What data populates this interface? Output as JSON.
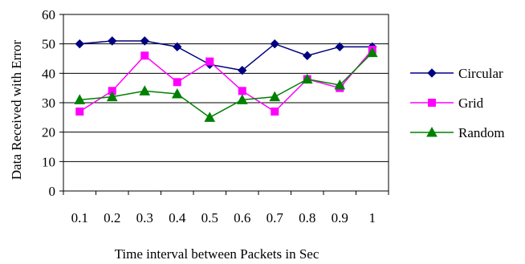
{
  "chart_data": {
    "type": "line",
    "xlabel": "Time interval between Packets in Sec",
    "ylabel": "Data Received with Error",
    "categories": [
      "0.1",
      "0.2",
      "0.3",
      "0.4",
      "0.5",
      "0.6",
      "0.7",
      "0.8",
      "0.9",
      "1"
    ],
    "ylim": [
      0,
      60
    ],
    "yticks": [
      "0",
      "10",
      "20",
      "30",
      "40",
      "50",
      "60"
    ],
    "grid": "horizontal",
    "legend_position": "right",
    "series": [
      {
        "name": "Circular",
        "color": "#000080",
        "marker": "diamond",
        "values": [
          50,
          51,
          51,
          49,
          43,
          41,
          50,
          46,
          49,
          49
        ]
      },
      {
        "name": "Grid",
        "color": "#ff00ff",
        "marker": "square",
        "values": [
          27,
          34,
          46,
          37,
          44,
          34,
          27,
          38,
          35,
          48
        ]
      },
      {
        "name": "Random",
        "color": "#008000",
        "marker": "triangle",
        "values": [
          31,
          32,
          34,
          33,
          25,
          31,
          32,
          38,
          36,
          47
        ]
      }
    ]
  }
}
